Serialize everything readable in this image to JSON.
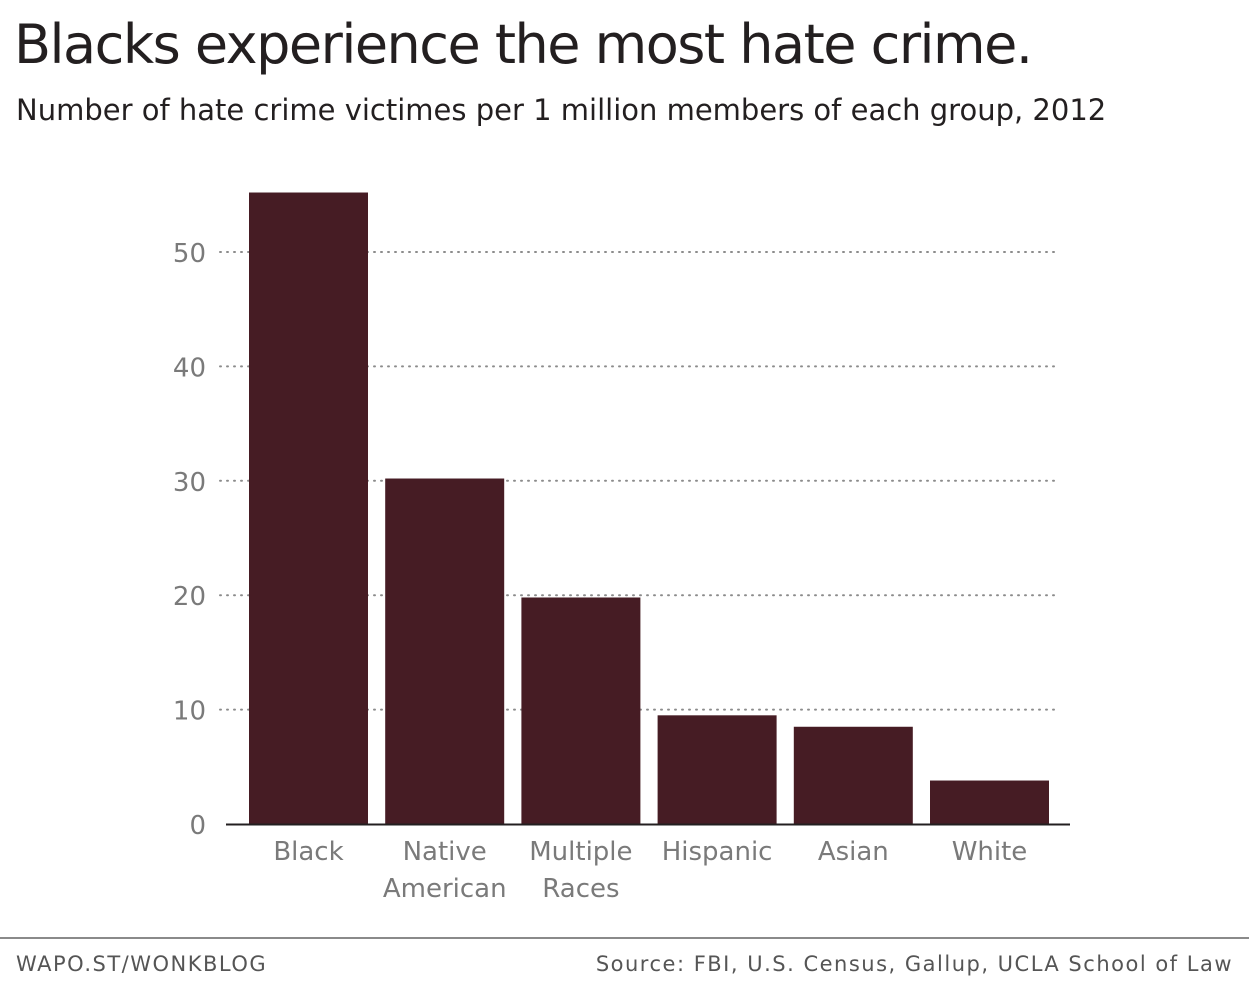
{
  "header": {
    "title": "Blacks experience the most hate crime.",
    "subtitle": "Number of hate crime victimes per 1 million members of each group, 2012"
  },
  "footer": {
    "credit": "WAPO.ST/WONKBLOG",
    "source": "Source: FBI, U.S. Census, Gallup, UCLA School of Law"
  },
  "colors": {
    "bar": "#461c24",
    "grid": "#8c8c8c",
    "axis": "#231f20",
    "tick_label": "#7a7a7a",
    "category_label": "#7a7a7a"
  },
  "chart_data": {
    "type": "bar",
    "title": "Blacks experience the most hate crime.",
    "subtitle": "Number of hate crime victimes per 1 million members of each group, 2012",
    "categories": [
      [
        "Black"
      ],
      [
        "Native",
        "American"
      ],
      [
        "Multiple",
        "Races"
      ],
      [
        "Hispanic"
      ],
      [
        "Asian"
      ],
      [
        "White"
      ]
    ],
    "values": [
      55.2,
      30.2,
      19.8,
      9.5,
      8.5,
      3.8
    ],
    "ylim": [
      0,
      58
    ],
    "yticks": [
      0,
      10,
      20,
      30,
      40,
      50
    ],
    "grid": "horizontal dotted",
    "legend": "none",
    "xlabel": "",
    "ylabel": ""
  }
}
